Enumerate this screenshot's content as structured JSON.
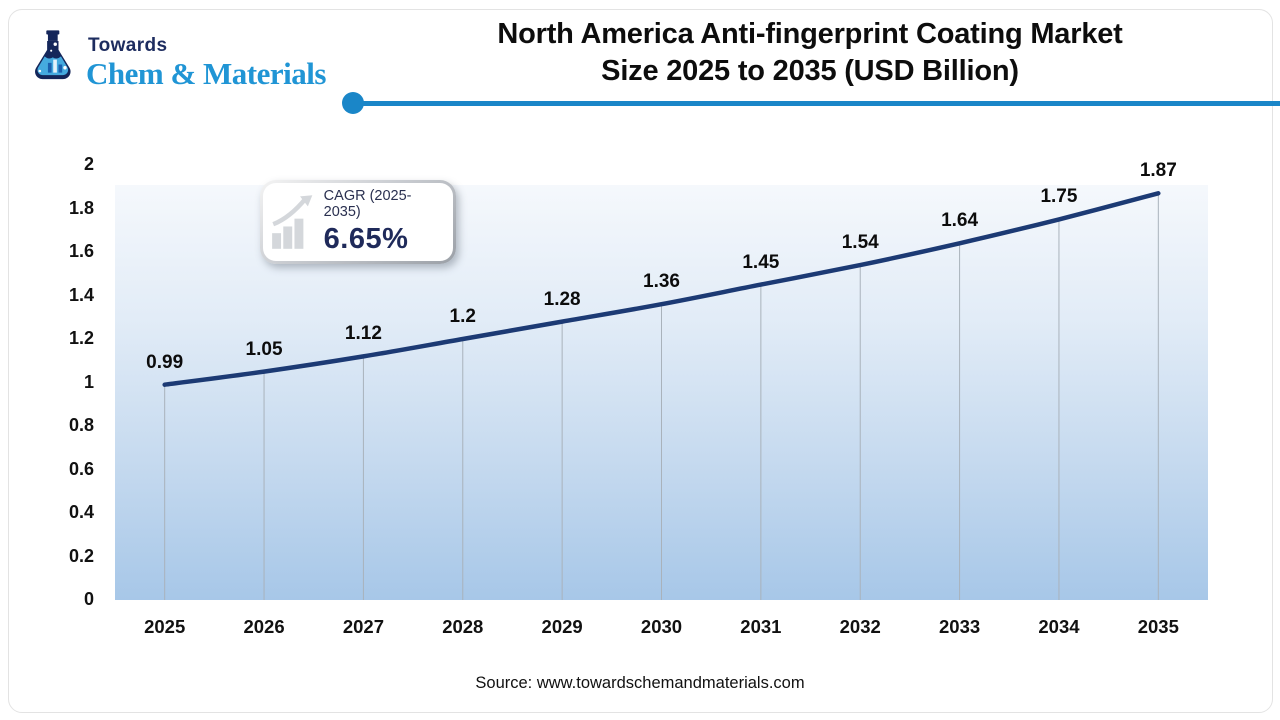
{
  "logo": {
    "top": "Towards",
    "brand": "Chem & Materials"
  },
  "header": {
    "title_line1": "North America Anti-fingerprint Coating Market",
    "title_line2": "Size 2025 to 2035 (USD Billion)"
  },
  "cagr_box": {
    "label": "CAGR (2025-2035)",
    "value": "6.65%"
  },
  "source": "Source: www.towardschemandmaterials.com",
  "colors": {
    "accent_blue": "#1a86c8",
    "line_navy": "#1c3a74",
    "drop_line": "#a9b2bb",
    "brand_blue": "#2095d5",
    "brand_navy": "#1d2c5f",
    "plot_top": "#f5f8fc",
    "plot_bottom": "#a7c7e8"
  },
  "chart_data": {
    "type": "line",
    "title": "North America Anti-fingerprint Coating Market Size 2025 to 2035 (USD Billion)",
    "categories": [
      "2025",
      "2026",
      "2027",
      "2028",
      "2029",
      "2030",
      "2031",
      "2032",
      "2033",
      "2034",
      "2035"
    ],
    "values": [
      0.99,
      1.05,
      1.12,
      1.2,
      1.28,
      1.36,
      1.45,
      1.54,
      1.64,
      1.75,
      1.87
    ],
    "value_labels": [
      "0.99",
      "1.05",
      "1.12",
      "1.2",
      "1.28",
      "1.36",
      "1.45",
      "1.54",
      "1.64",
      "1.75",
      "1.87"
    ],
    "xlabel": "",
    "ylabel": "",
    "ylim": [
      0,
      2
    ],
    "ytick_step": 0.2,
    "ytick_labels": [
      "0",
      "0.2",
      "0.4",
      "0.6",
      "0.8",
      "1",
      "1.2",
      "1.4",
      "1.6",
      "1.8",
      "2"
    ],
    "grid": "vertical-drop-lines-only",
    "legend": "none",
    "smooth": true,
    "units": "USD Billion"
  }
}
